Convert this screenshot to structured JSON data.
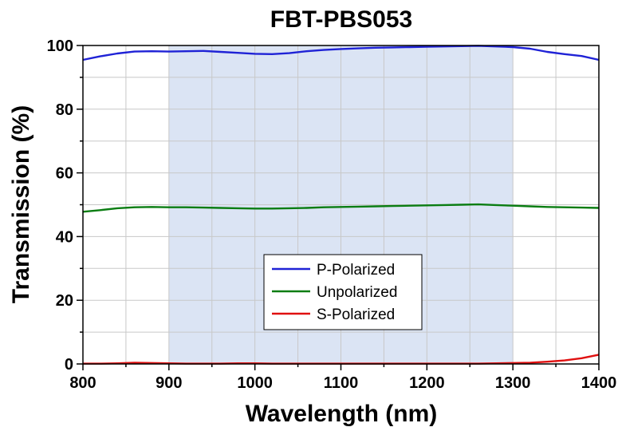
{
  "chart_data": {
    "type": "line",
    "title": "FBT-PBS053",
    "xlabel": "Wavelength (nm)",
    "ylabel": "Transmission (%)",
    "xlim": [
      800,
      1400
    ],
    "ylim": [
      0,
      100
    ],
    "xticks": [
      800,
      900,
      1000,
      1100,
      1200,
      1300,
      1400
    ],
    "yticks": [
      0,
      20,
      40,
      60,
      80,
      100
    ],
    "grid": true,
    "legend_position": "bottom-center",
    "highlight_band": {
      "range": [
        900,
        1300
      ],
      "color": "#dbe4f4"
    },
    "series": [
      {
        "name": "P-Polarized",
        "color": "#1f22d6",
        "x": [
          800,
          820,
          840,
          860,
          880,
          900,
          920,
          940,
          960,
          980,
          1000,
          1020,
          1040,
          1060,
          1080,
          1100,
          1120,
          1140,
          1160,
          1180,
          1200,
          1220,
          1240,
          1260,
          1280,
          1300,
          1320,
          1340,
          1360,
          1380,
          1400
        ],
        "values": [
          95.5,
          96.6,
          97.5,
          98.1,
          98.2,
          98.1,
          98.2,
          98.3,
          98.0,
          97.7,
          97.4,
          97.3,
          97.6,
          98.2,
          98.6,
          98.9,
          99.1,
          99.3,
          99.4,
          99.5,
          99.6,
          99.7,
          99.8,
          99.9,
          99.7,
          99.5,
          99.0,
          98.0,
          97.3,
          96.7,
          95.5
        ]
      },
      {
        "name": "Unpolarized",
        "color": "#0a7d12",
        "x": [
          800,
          820,
          840,
          860,
          880,
          900,
          920,
          940,
          960,
          980,
          1000,
          1020,
          1040,
          1060,
          1080,
          1100,
          1120,
          1140,
          1160,
          1180,
          1200,
          1220,
          1240,
          1260,
          1280,
          1300,
          1320,
          1340,
          1360,
          1380,
          1400
        ],
        "values": [
          47.8,
          48.3,
          48.9,
          49.2,
          49.3,
          49.2,
          49.2,
          49.1,
          49.0,
          48.9,
          48.8,
          48.8,
          48.9,
          49.0,
          49.2,
          49.3,
          49.4,
          49.5,
          49.6,
          49.7,
          49.8,
          49.9,
          50.0,
          50.1,
          49.9,
          49.7,
          49.5,
          49.3,
          49.2,
          49.1,
          49.0
        ]
      },
      {
        "name": "S-Polarized",
        "color": "#e01010",
        "x": [
          800,
          820,
          840,
          860,
          880,
          900,
          920,
          940,
          960,
          980,
          1000,
          1020,
          1040,
          1060,
          1080,
          1100,
          1120,
          1140,
          1160,
          1180,
          1200,
          1220,
          1240,
          1260,
          1280,
          1300,
          1320,
          1340,
          1360,
          1380,
          1400
        ],
        "values": [
          0.1,
          0.1,
          0.2,
          0.4,
          0.3,
          0.2,
          0.1,
          0.1,
          0.1,
          0.2,
          0.2,
          0.1,
          0.1,
          0.1,
          0.1,
          0.1,
          0.1,
          0.1,
          0.1,
          0.1,
          0.1,
          0.1,
          0.1,
          0.1,
          0.2,
          0.3,
          0.4,
          0.7,
          1.1,
          1.8,
          2.9
        ]
      }
    ]
  }
}
